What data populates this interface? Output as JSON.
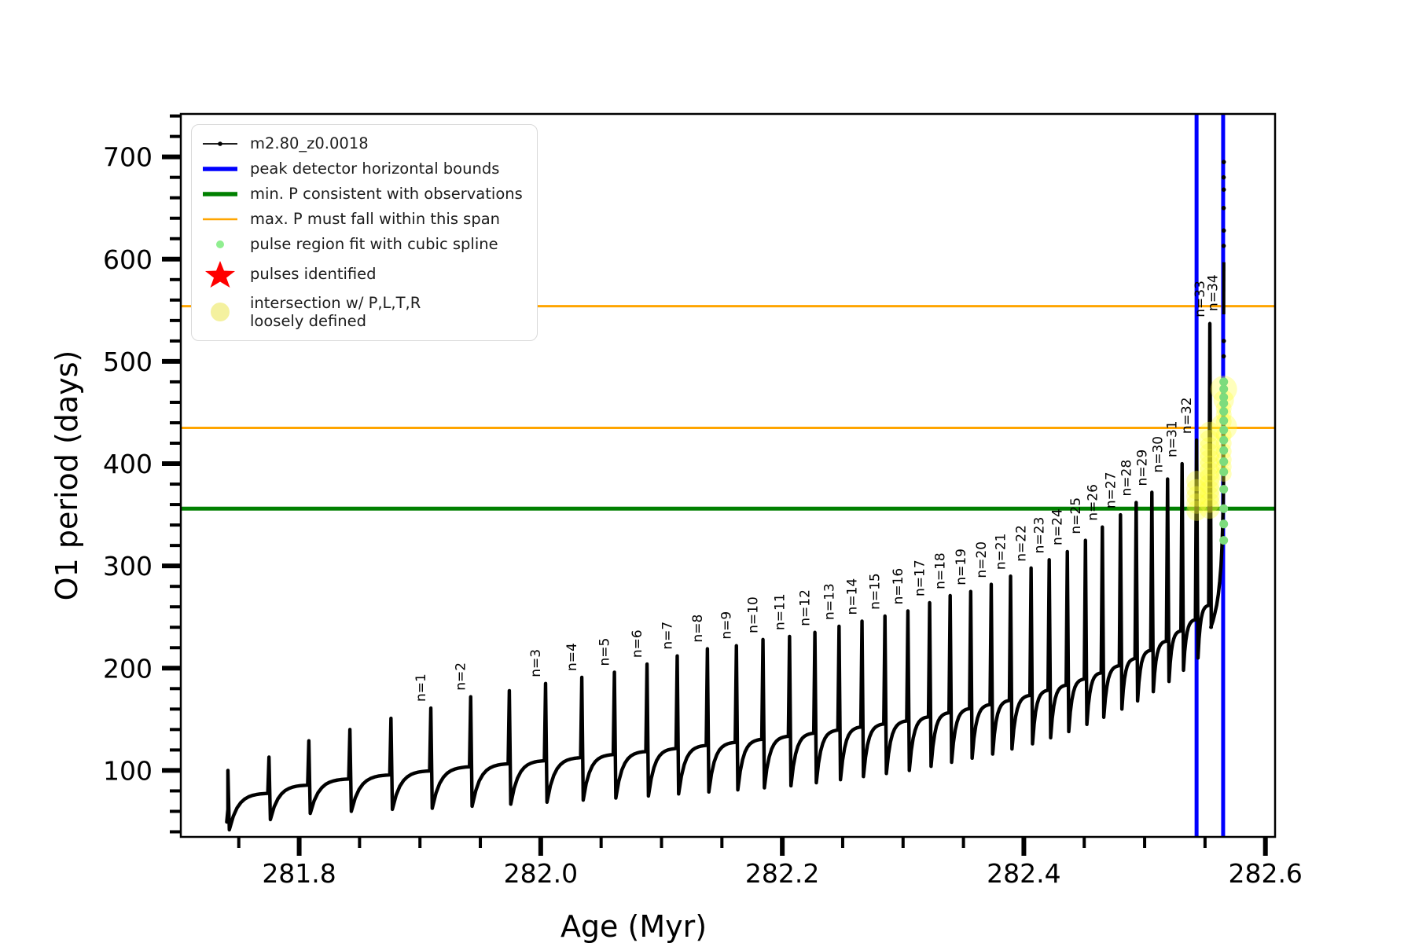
{
  "figure": {
    "background": "#ffffff"
  },
  "legend": {
    "items": [
      {
        "label": "m2.80_z0.0018",
        "handle": "line_dot",
        "color": "#000000"
      },
      {
        "label": "peak detector horizontal bounds",
        "handle": "hline_thick",
        "color": "#0000ff"
      },
      {
        "label": "min. P consistent with observations",
        "handle": "hline_thick",
        "color": "#008000"
      },
      {
        "label": "max. P must fall within this span",
        "handle": "hline_thin",
        "color": "#ffa500"
      },
      {
        "label": "pulse region fit with cubic spline",
        "handle": "dot_small",
        "color": "#90ee90"
      },
      {
        "label": "pulses identified",
        "handle": "star",
        "color": "#ff0000"
      },
      {
        "label": "intersection w/ P,L,T,R\nloosely defined",
        "handle": "dot_big",
        "color": "#f2ef8e"
      }
    ]
  },
  "chart_data": {
    "type": "line",
    "title": "",
    "xlabel": "Age (Myr)",
    "ylabel": "O1 period (days)",
    "xlim": [
      281.702,
      282.608
    ],
    "ylim": [
      35,
      742
    ],
    "grid": false,
    "legend_position": "upper-left",
    "series_name": "m2.80_z0.0018",
    "xticks": [
      281.8,
      282.0,
      282.2,
      282.4,
      282.6
    ],
    "xtick_labels": [
      "281.8",
      "282.0",
      "282.2",
      "282.4",
      "282.6"
    ],
    "x_minor_step": 0.05,
    "yticks": [
      100,
      200,
      300,
      400,
      500,
      600,
      700
    ],
    "ytick_labels": [
      "100",
      "200",
      "300",
      "400",
      "500",
      "600",
      "700"
    ],
    "y_minor_step": 20,
    "hlines": [
      {
        "y": 356,
        "color": "#008000",
        "width": 5,
        "meaning": "min. P consistent with observations"
      },
      {
        "y": 435,
        "color": "#ffa500",
        "width": 3,
        "meaning": "max. P span lower edge"
      },
      {
        "y": 554,
        "color": "#ffa500",
        "width": 3,
        "meaning": "max. P span upper edge"
      }
    ],
    "vlines": [
      {
        "x": 282.543,
        "color": "#0000ff",
        "width": 5,
        "meaning": "peak detector bound"
      },
      {
        "x": 282.565,
        "color": "#0000ff",
        "width": 5,
        "meaning": "peak detector bound"
      }
    ],
    "pulses": [
      {
        "x": 281.741,
        "base": 62,
        "top": 100,
        "dip": 42,
        "label": null
      },
      {
        "x": 281.775,
        "base": 78,
        "top": 113,
        "dip": 52,
        "label": null
      },
      {
        "x": 281.808,
        "base": 86,
        "top": 129,
        "dip": 58,
        "label": null
      },
      {
        "x": 281.842,
        "base": 92,
        "top": 140,
        "dip": 60,
        "label": null
      },
      {
        "x": 281.876,
        "base": 96,
        "top": 151,
        "dip": 62,
        "label": null
      },
      {
        "x": 281.909,
        "base": 100,
        "top": 161,
        "dip": 63,
        "label": "n=1"
      },
      {
        "x": 281.942,
        "base": 104,
        "top": 172,
        "dip": 65,
        "label": "n=2"
      },
      {
        "x": 281.974,
        "base": 107,
        "top": 178,
        "dip": 67,
        "label": null
      },
      {
        "x": 282.004,
        "base": 110,
        "top": 185,
        "dip": 69,
        "label": "n=3"
      },
      {
        "x": 282.034,
        "base": 113,
        "top": 191,
        "dip": 71,
        "label": "n=4"
      },
      {
        "x": 282.061,
        "base": 116,
        "top": 196,
        "dip": 73,
        "label": "n=5"
      },
      {
        "x": 282.088,
        "base": 119,
        "top": 204,
        "dip": 75,
        "label": "n=6"
      },
      {
        "x": 282.113,
        "base": 122,
        "top": 212,
        "dip": 77,
        "label": "n=7"
      },
      {
        "x": 282.138,
        "base": 125,
        "top": 219,
        "dip": 79,
        "label": "n=8"
      },
      {
        "x": 282.162,
        "base": 128,
        "top": 222,
        "dip": 81,
        "label": "n=9"
      },
      {
        "x": 282.184,
        "base": 131,
        "top": 228,
        "dip": 83,
        "label": "n=10"
      },
      {
        "x": 282.206,
        "base": 134,
        "top": 231,
        "dip": 85,
        "label": "n=11"
      },
      {
        "x": 282.227,
        "base": 137,
        "top": 235,
        "dip": 88,
        "label": "n=12"
      },
      {
        "x": 282.247,
        "base": 140,
        "top": 241,
        "dip": 91,
        "label": "n=13"
      },
      {
        "x": 282.266,
        "base": 143,
        "top": 246,
        "dip": 94,
        "label": "n=14"
      },
      {
        "x": 282.285,
        "base": 146,
        "top": 251,
        "dip": 97,
        "label": "n=15"
      },
      {
        "x": 282.304,
        "base": 149,
        "top": 256,
        "dip": 100,
        "label": "n=16"
      },
      {
        "x": 282.322,
        "base": 153,
        "top": 264,
        "dip": 104,
        "label": "n=17"
      },
      {
        "x": 282.339,
        "base": 157,
        "top": 271,
        "dip": 108,
        "label": "n=18"
      },
      {
        "x": 282.356,
        "base": 161,
        "top": 275,
        "dip": 112,
        "label": "n=19"
      },
      {
        "x": 282.373,
        "base": 165,
        "top": 282,
        "dip": 116,
        "label": "n=20"
      },
      {
        "x": 282.389,
        "base": 169,
        "top": 290,
        "dip": 121,
        "label": "n=21"
      },
      {
        "x": 282.406,
        "base": 174,
        "top": 298,
        "dip": 126,
        "label": "n=22"
      },
      {
        "x": 282.421,
        "base": 179,
        "top": 306,
        "dip": 132,
        "label": "n=23"
      },
      {
        "x": 282.436,
        "base": 184,
        "top": 314,
        "dip": 138,
        "label": "n=24"
      },
      {
        "x": 282.451,
        "base": 190,
        "top": 325,
        "dip": 145,
        "label": "n=25"
      },
      {
        "x": 282.465,
        "base": 196,
        "top": 338,
        "dip": 152,
        "label": "n=26"
      },
      {
        "x": 282.48,
        "base": 203,
        "top": 350,
        "dip": 160,
        "label": "n=27"
      },
      {
        "x": 282.493,
        "base": 210,
        "top": 362,
        "dip": 168,
        "label": "n=28"
      },
      {
        "x": 282.506,
        "base": 218,
        "top": 372,
        "dip": 177,
        "label": "n=29"
      },
      {
        "x": 282.519,
        "base": 227,
        "top": 385,
        "dip": 187,
        "label": "n=30"
      },
      {
        "x": 282.531,
        "base": 237,
        "top": 400,
        "dip": 198,
        "label": "n=31"
      },
      {
        "x": 282.543,
        "base": 248,
        "top": 423,
        "dip": 210,
        "label": "n=32"
      },
      {
        "x": 282.554,
        "base": 262,
        "top": 537,
        "dip": 240,
        "label": "n=33"
      },
      {
        "x": 282.5648,
        "base": null,
        "top": 543,
        "dip": null,
        "label": "n=34"
      }
    ],
    "final_rise": [
      [
        282.5548,
        240
      ],
      [
        282.5565,
        246
      ],
      [
        282.558,
        253
      ],
      [
        282.5597,
        262
      ],
      [
        282.561,
        272
      ],
      [
        282.5622,
        285
      ],
      [
        282.5632,
        300
      ],
      [
        282.564,
        318
      ],
      [
        282.5646,
        338
      ],
      [
        282.565,
        356
      ],
      [
        282.5653,
        380
      ],
      [
        282.5655,
        480
      ]
    ],
    "final_upper_segment": [
      [
        282.5655,
        546
      ],
      [
        282.5656,
        597
      ]
    ],
    "final_sparse_points": [
      [
        282.5654,
        505
      ],
      [
        282.5655,
        520
      ],
      [
        282.5654,
        613
      ],
      [
        282.5655,
        628
      ],
      [
        282.5654,
        650
      ],
      [
        282.5655,
        668
      ],
      [
        282.5654,
        680
      ],
      [
        282.5655,
        695
      ]
    ],
    "spline_markers": {
      "x": 282.5655,
      "color": "#7ddc7d",
      "radius": 5.5,
      "values": [
        325,
        341,
        356,
        375,
        392,
        402,
        413,
        423,
        433,
        442,
        451,
        459,
        465,
        473,
        480
      ]
    },
    "intersection_markers": {
      "color": "#ffff33",
      "opacity": 0.33,
      "clusters": [
        {
          "x": 282.543,
          "radius": 13,
          "values": [
            354,
            361,
            368,
            375,
            383
          ]
        },
        {
          "x": 282.5537,
          "radius": 13,
          "values": [
            356,
            362,
            368,
            374,
            380,
            386,
            392,
            398,
            404,
            410,
            416,
            423,
            431
          ]
        },
        {
          "x": 282.5655,
          "radius": 10,
          "values": [
            390,
            397,
            404,
            412,
            420,
            428,
            441,
            448,
            454
          ]
        },
        {
          "x": 282.5655,
          "radius": 17,
          "values": [
            436,
            473
          ]
        },
        {
          "x": 282.5655,
          "radius": 13,
          "values": [
            462
          ]
        }
      ]
    }
  }
}
